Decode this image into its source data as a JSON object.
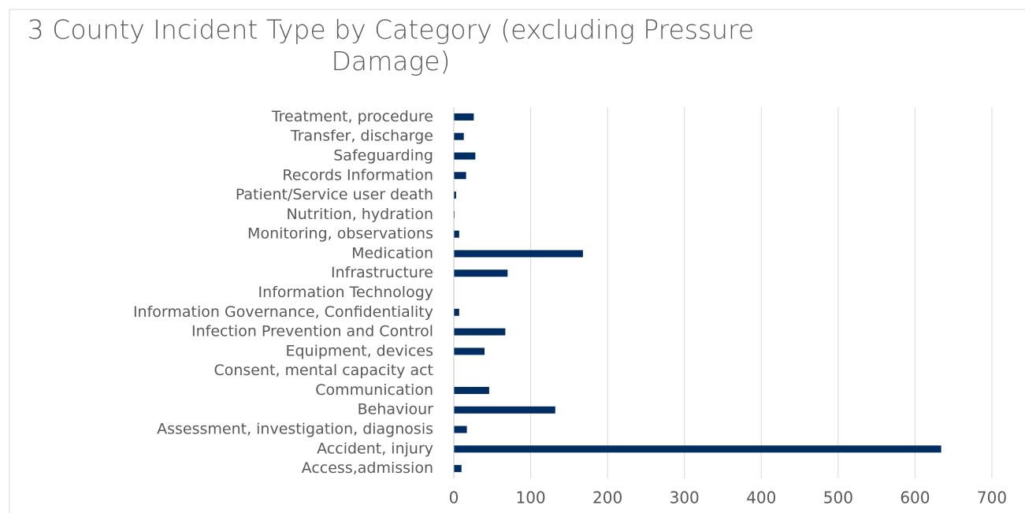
{
  "chart_data": {
    "type": "bar",
    "orientation": "horizontal",
    "title": "3 County Incident Type by Category (excluding Pressure Damage)",
    "categories": [
      "Access,admission",
      "Accident, injury",
      "Assessment, investigation, diagnosis",
      "Behaviour",
      "Communication",
      "Consent, mental capacity act",
      "Equipment, devices",
      "Infection Prevention and Control",
      "Information Governance, Confidentiality",
      "Information Technology",
      "Infrastructure",
      "Medication",
      "Monitoring, observations",
      "Nutrition, hydration",
      "Patient/Service user death",
      "Records Information",
      "Safeguarding",
      "Transfer, discharge",
      "Treatment, procedure"
    ],
    "values": [
      10,
      634,
      17,
      132,
      46,
      0,
      40,
      67,
      7,
      0,
      70,
      168,
      7,
      1,
      3,
      16,
      28,
      13,
      26
    ],
    "color": "#002d62",
    "xlim": [
      0,
      700
    ],
    "xticks": [
      0,
      100,
      200,
      300,
      400,
      500,
      600,
      700
    ],
    "grid": true
  }
}
